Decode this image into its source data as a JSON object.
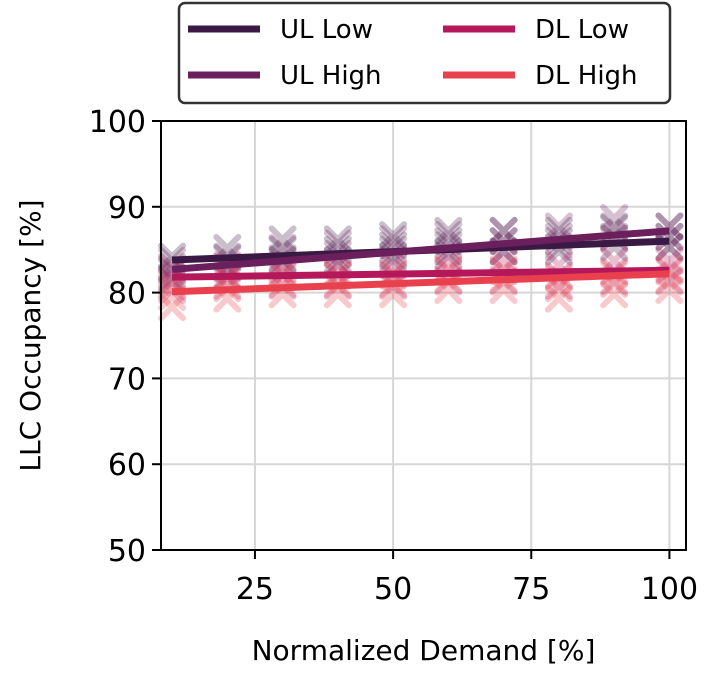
{
  "chart_data": {
    "type": "line",
    "xlabel": "Normalized Demand [%]",
    "ylabel": "LLC Occupancy [%]",
    "xlim": [
      8,
      103
    ],
    "ylim": [
      50,
      100
    ],
    "xticks": [
      "25",
      "50",
      "75",
      "100"
    ],
    "yticks": [
      "50",
      "60",
      "70",
      "80",
      "90",
      "100"
    ],
    "grid": true,
    "legend_position": "top",
    "x": [
      10,
      20,
      30,
      40,
      50,
      60,
      70,
      80,
      90,
      100
    ],
    "series": [
      {
        "name": "UL Low",
        "color": "#3a1a44",
        "fit": [
          83.8,
          86.0
        ],
        "scatter": [
          83,
          84,
          85,
          85,
          85.5,
          86,
          86,
          86,
          86.5,
          86.5
        ]
      },
      {
        "name": "UL High",
        "color": "#6b1f5c",
        "fit": [
          82.7,
          87.2
        ],
        "scatter": [
          82.5,
          83,
          84,
          84.5,
          85,
          85.5,
          86,
          86.5,
          87.5,
          86.5
        ]
      },
      {
        "name": "DL Low",
        "color": "#b4185a",
        "fit": [
          81.8,
          82.6
        ],
        "scatter": [
          81.5,
          82,
          82,
          82,
          82,
          82.5,
          82.5,
          82,
          82.5,
          82.5
        ]
      },
      {
        "name": "DL High",
        "color": "#e8404d",
        "fit": [
          80.1,
          82.2
        ],
        "scatter": [
          79.5,
          80.5,
          81,
          81,
          81,
          81.5,
          81.5,
          80.5,
          81,
          81.5
        ]
      }
    ]
  }
}
